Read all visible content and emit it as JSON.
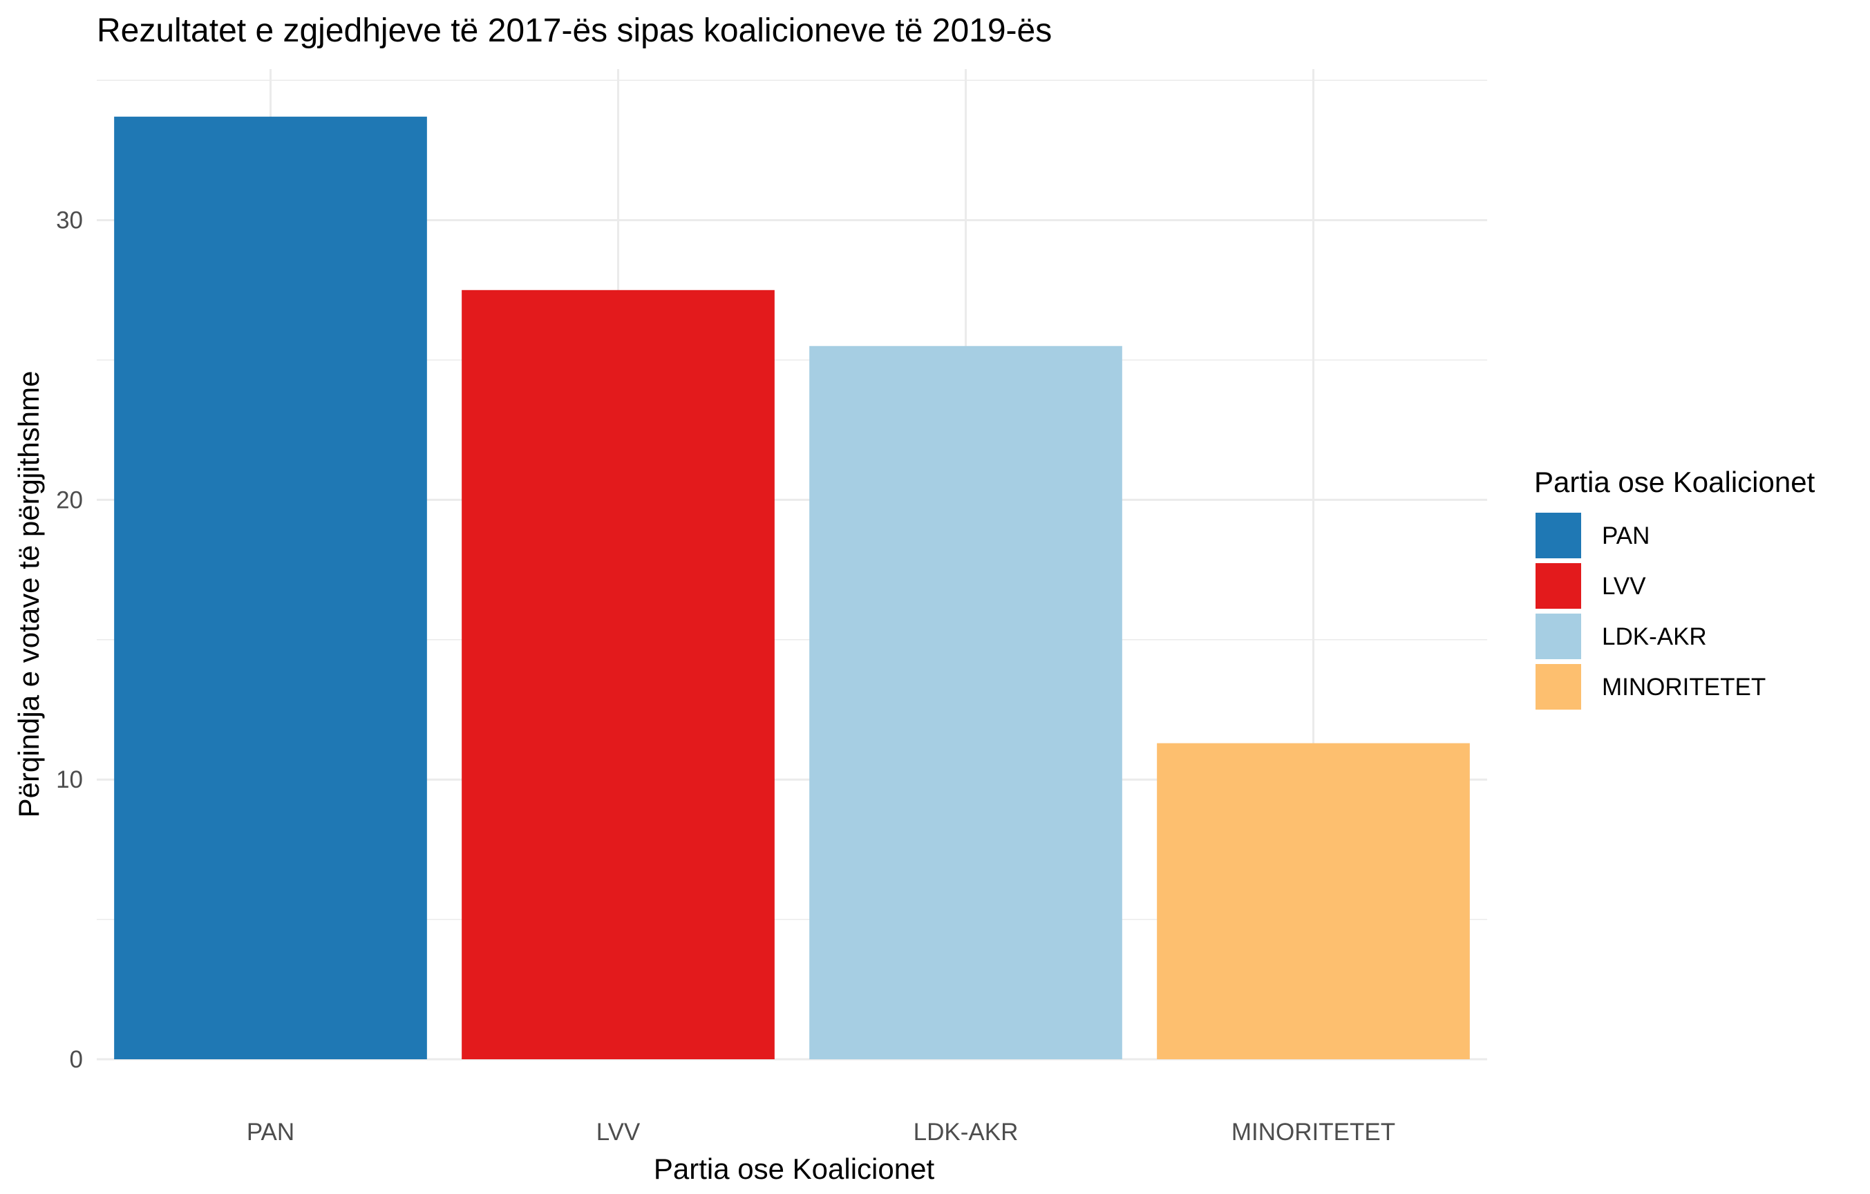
{
  "chart_data": {
    "type": "bar",
    "title": "Rezultatet e zgjedhjeve të 2017-ës sipas koalicioneve të 2019-ës",
    "xlabel": "Partia ose Koalicionet",
    "ylabel": "Përqindja e votave të përgjithshme",
    "categories": [
      "PAN",
      "LVV",
      "LDK-AKR",
      "MINORITETET"
    ],
    "values": [
      33.7,
      27.5,
      25.5,
      11.3
    ],
    "colors": [
      "#1f78b4",
      "#e31a1c",
      "#a6cee3",
      "#fdbf6f"
    ],
    "ylim": [
      0,
      35.4
    ],
    "yticks": [
      0,
      10,
      20,
      30
    ],
    "grid": true,
    "legend": {
      "title": "Partia ose Koalicionet",
      "position": "right",
      "entries": [
        "PAN",
        "LVV",
        "LDK-AKR",
        "MINORITETET"
      ]
    }
  }
}
